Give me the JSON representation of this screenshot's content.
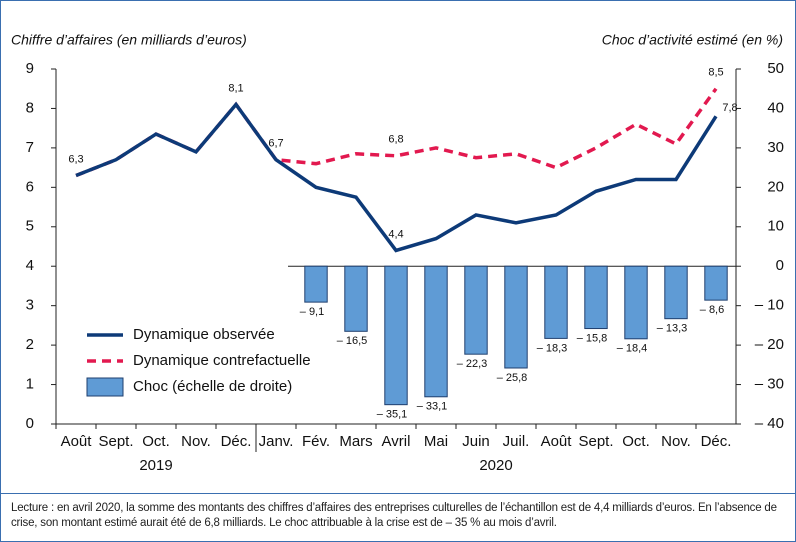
{
  "chart_data": {
    "type": "bar-line",
    "y_label": "Chiffre d’affaires (en milliards d’euros)",
    "y2_label": "Choc d’activité estimé (en %)",
    "categories": [
      "Août",
      "Sept.",
      "Oct.",
      "Nov.",
      "Déc.",
      "Janv.",
      "Fév.",
      "Mars",
      "Avril",
      "Mai",
      "Juin",
      "Juil.",
      "Août",
      "Sept.",
      "Oct.",
      "Nov.",
      "Déc."
    ],
    "year_labels": [
      "2019",
      "2020"
    ],
    "ylim": [
      0,
      9
    ],
    "yticks": [
      0,
      1,
      2,
      3,
      4,
      5,
      6,
      7,
      8,
      9
    ],
    "y2lim": [
      -40,
      50
    ],
    "y2ticks": [
      {
        "value": -40,
        "label": "– 40"
      },
      {
        "value": -30,
        "label": "– 30"
      },
      {
        "value": -20,
        "label": "– 20"
      },
      {
        "value": -10,
        "label": "– 10"
      },
      0,
      10,
      20,
      30,
      40,
      50
    ],
    "series": [
      {
        "name": "Dynamique observée",
        "type": "line",
        "color": "#0d3a78",
        "values": [
          6.3,
          6.7,
          7.35,
          6.9,
          8.1,
          6.7,
          6.0,
          5.75,
          4.4,
          4.7,
          5.3,
          5.1,
          5.3,
          5.9,
          6.2,
          6.2,
          7.8
        ],
        "value_labels": [
          "6,3",
          null,
          null,
          null,
          "8,1",
          "6,7",
          null,
          null,
          "4,4",
          null,
          null,
          null,
          null,
          null,
          null,
          null,
          "7,8"
        ]
      },
      {
        "name": "Dynamique contrefactuelle",
        "type": "line",
        "dashed": true,
        "color": "#e2194f",
        "values": [
          6.3,
          6.7,
          7.35,
          6.9,
          8.1,
          6.7,
          6.6,
          6.85,
          6.8,
          7.0,
          6.75,
          6.85,
          6.5,
          7.0,
          7.6,
          7.1,
          8.5
        ],
        "value_labels": [
          null,
          null,
          null,
          null,
          null,
          null,
          null,
          null,
          "6,8",
          null,
          null,
          null,
          null,
          null,
          null,
          null,
          "8,5"
        ]
      },
      {
        "name": "Choc (échelle de droite)",
        "type": "bar",
        "axis": "y2",
        "color": "#5f9bd5",
        "values": [
          null,
          null,
          null,
          null,
          null,
          null,
          -9.1,
          -16.5,
          -35.1,
          -33.1,
          -22.3,
          -25.8,
          -18.3,
          -15.8,
          -18.4,
          -13.3,
          -8.6
        ],
        "value_labels": [
          null,
          null,
          null,
          null,
          null,
          null,
          "– 9,1",
          "– 16,5",
          "– 35,1",
          "– 33,1",
          "– 22,3",
          "– 25,8",
          "– 18,3",
          "– 15,8",
          "– 18,4",
          "– 13,3",
          "– 8,6"
        ]
      }
    ],
    "note": "Lecture : en avril 2020, la somme des montants des chiffres d’affaires des entreprises culturelles de l’échantillon est de 4,4 milliards d’euros. En l’absence de crise, son montant estimé aurait été de 6,8 milliards. Le choc attribuable à la crise est de – 35 % au mois d’avril."
  }
}
